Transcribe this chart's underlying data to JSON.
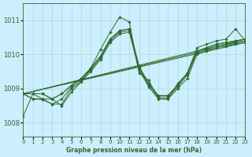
{
  "title": "Graphe pression niveau de la mer (hPa)",
  "bg_color": "#cceeff",
  "grid_color": "#aaddcc",
  "line_color": "#2d6a2d",
  "xlim": [
    0,
    23
  ],
  "ylim": [
    1007.6,
    1011.5
  ],
  "yticks": [
    1008,
    1009,
    1010,
    1011
  ],
  "ytick_labels": [
    "1008",
    "1009",
    "1010",
    "1011"
  ],
  "xticks": [
    0,
    1,
    2,
    3,
    4,
    5,
    6,
    7,
    8,
    9,
    10,
    11,
    12,
    13,
    14,
    15,
    16,
    17,
    18,
    19,
    20,
    21,
    22,
    23
  ],
  "lines": [
    [
      1008.2,
      1008.85,
      1008.7,
      1008.7,
      1008.5,
      1008.9,
      1009.2,
      1009.6,
      1010.15,
      1010.65,
      1011.1,
      1010.95,
      1009.45,
      1009.25,
      1008.7,
      1008.7,
      1009.15,
      1009.45,
      1010.2,
      1010.3,
      1010.4,
      1010.45,
      1010.75,
      1010.4
    ],
    [
      1008.85,
      1008.7,
      1008.7,
      1008.55,
      1008.55,
      1009.0,
      1009.2,
      1009.5,
      1009.85,
      1010.35,
      1010.6,
      1010.65,
      1009.55,
      1009.05,
      1008.7,
      1008.7,
      1009.0,
      1009.3,
      1010.0,
      1010.1,
      1010.2,
      1010.25,
      1010.3,
      1010.35
    ],
    [
      1008.85,
      1008.7,
      1008.68,
      1008.55,
      1008.7,
      1009.05,
      1009.25,
      1009.55,
      1009.9,
      1010.4,
      1010.65,
      1010.7,
      1009.6,
      1009.1,
      1008.75,
      1008.75,
      1009.05,
      1009.4,
      1010.05,
      1010.15,
      1010.25,
      1010.3,
      1010.35,
      1010.4
    ],
    [
      1008.85,
      1008.85,
      1008.85,
      1008.7,
      1008.85,
      1009.1,
      1009.3,
      1009.6,
      1009.95,
      1010.45,
      1010.7,
      1010.75,
      1009.65,
      1009.15,
      1008.8,
      1008.8,
      1009.1,
      1009.45,
      1010.1,
      1010.2,
      1010.3,
      1010.35,
      1010.4,
      1010.45
    ],
    [
      1008.85,
      1008.85,
      1008.85,
      1008.7,
      1008.85,
      1009.1,
      1009.3,
      1009.6,
      1009.95,
      1010.45,
      1010.7,
      1010.75,
      1009.65,
      1009.15,
      1008.8,
      1008.8,
      1009.1,
      1009.45,
      1010.1,
      1010.2,
      1010.3,
      1010.35,
      1010.4,
      1010.45
    ]
  ],
  "straight_lines": [
    {
      "x0": 0,
      "y0": 1008.85,
      "x1": 23,
      "y1": 1010.35
    },
    {
      "x0": 0,
      "y0": 1008.85,
      "x1": 23,
      "y1": 1010.4
    },
    {
      "x0": 0,
      "y0": 1008.85,
      "x1": 23,
      "y1": 1010.45
    }
  ]
}
